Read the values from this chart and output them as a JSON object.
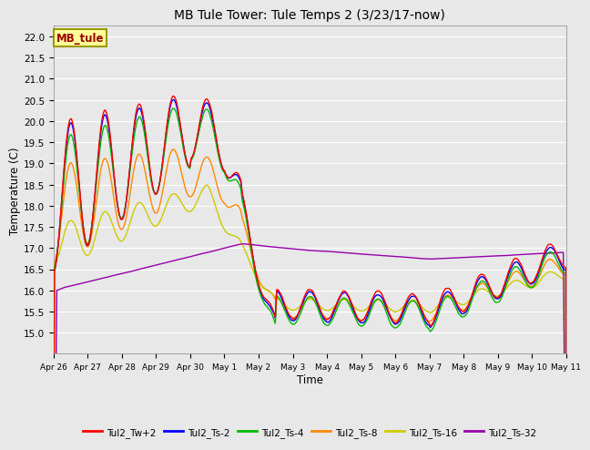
{
  "title": "MB Tule Tower: Tule Temps 2 (3/23/17-now)",
  "xlabel": "Time",
  "ylabel": "Temperature (C)",
  "ylim": [
    14.5,
    22.25
  ],
  "yticks": [
    15.0,
    15.5,
    16.0,
    16.5,
    17.0,
    17.5,
    18.0,
    18.5,
    19.0,
    19.5,
    20.0,
    20.5,
    21.0,
    21.5,
    22.0
  ],
  "bg_color": "#e8e8e8",
  "grid_color": "#ffffff",
  "series_colors": {
    "Tul2_Tw+2": "#ff0000",
    "Tul2_Ts-2": "#0000ff",
    "Tul2_Ts-4": "#00bb00",
    "Tul2_Ts-8": "#ff8800",
    "Tul2_Ts-16": "#cccc00",
    "Tul2_Ts-32": "#9900aa"
  },
  "x_tick_labels": [
    "Apr 26",
    "Apr 27",
    "Apr 28",
    "Apr 29",
    "Apr 30",
    "May 1",
    "May 2",
    "May 3",
    "May 4",
    "May 5",
    "May 6",
    "May 7",
    "May 8",
    "May 9",
    "May 10",
    "May 11"
  ],
  "annotation_text": "MB_tule",
  "annotation_color": "#990000",
  "annotation_bg": "#ffff99",
  "annotation_border": "#999900"
}
